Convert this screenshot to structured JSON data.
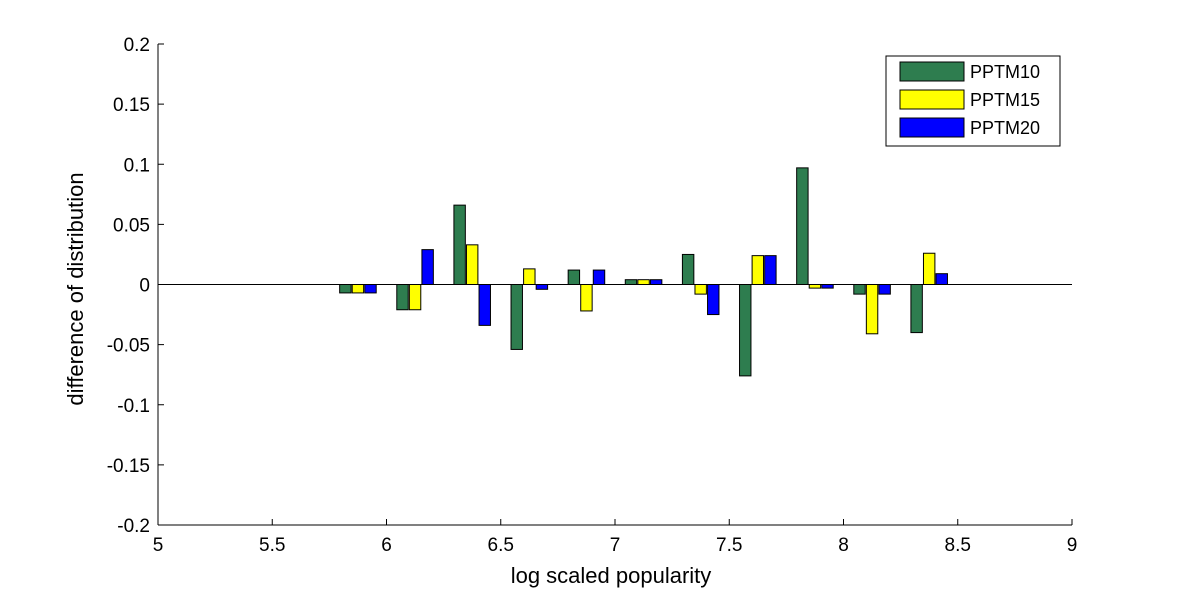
{
  "chart_data": {
    "type": "bar",
    "xlabel": "log scaled popularity",
    "ylabel": "difference of distribution",
    "xlim": [
      5,
      9
    ],
    "ylim": [
      -0.2,
      0.2
    ],
    "xticks": [
      "5",
      "5.5",
      "6",
      "6.5",
      "7",
      "7.5",
      "8",
      "8.5",
      "9"
    ],
    "yticks": [
      "-0.2",
      "-0.15",
      "-0.1",
      "-0.05",
      "0",
      "0.05",
      "0.1",
      "0.15",
      "0.2"
    ],
    "grid": false,
    "legend_position": "top-right",
    "x": [
      5.875,
      6.125,
      6.375,
      6.625,
      6.875,
      7.125,
      7.375,
      7.625,
      7.875,
      8.125,
      8.375
    ],
    "series": [
      {
        "name": "PPTM10",
        "color": "#2e7d4f",
        "values": [
          -0.007,
          -0.021,
          0.066,
          -0.054,
          0.012,
          0.004,
          0.025,
          -0.076,
          0.097,
          -0.008,
          -0.04
        ]
      },
      {
        "name": "PPTM15",
        "color": "#ffff00",
        "values": [
          -0.007,
          -0.021,
          0.033,
          0.013,
          -0.022,
          0.004,
          -0.008,
          0.024,
          -0.003,
          -0.041,
          0.026
        ]
      },
      {
        "name": "PPTM20",
        "color": "#0000ff",
        "values": [
          -0.007,
          0.029,
          -0.034,
          -0.004,
          0.012,
          0.004,
          -0.025,
          0.024,
          -0.003,
          -0.008,
          0.009
        ]
      }
    ]
  }
}
